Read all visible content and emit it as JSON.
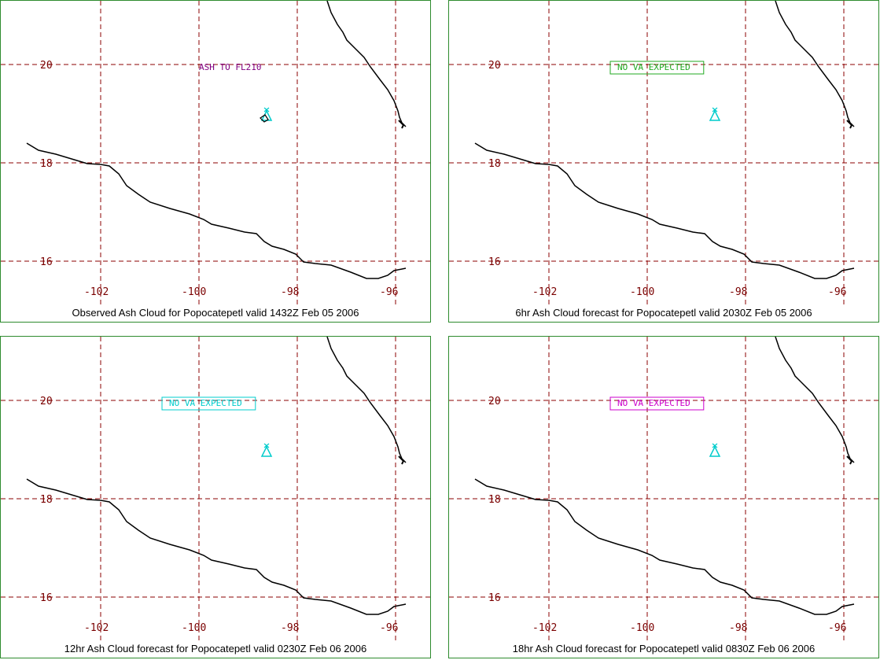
{
  "map": {
    "lon_ticks": [
      "-102",
      "-100",
      "-98",
      "-96"
    ],
    "lat_ticks": [
      "20",
      "18",
      "16"
    ],
    "grid_color": "#8b0000",
    "coast_color": "#000000",
    "volcano_color": "#00cccc",
    "volcano_icon": "volcano-triangle-icon"
  },
  "panels": [
    {
      "caption": "Observed Ash Cloud for Popocatepetl valid 1432Z Feb 05 2006",
      "note": "ASH TO FL210",
      "note_color": "#800080",
      "note_boxed": false,
      "ash_polygon": true
    },
    {
      "caption": "6hr Ash Cloud forecast for Popocatepetl valid 2030Z Feb 05 2006",
      "note": "NO VA EXPECTED",
      "note_color": "#22aa22",
      "note_boxed": true,
      "ash_polygon": false
    },
    {
      "caption": "12hr Ash Cloud forecast for Popocatepetl valid 0230Z Feb 06 2006",
      "note": "NO VA EXPECTED",
      "note_color": "#00cccc",
      "note_boxed": true,
      "ash_polygon": false
    },
    {
      "caption": "18hr Ash Cloud forecast for Popocatepetl valid 0830Z Feb 06 2006",
      "note": "NO VA EXPECTED",
      "note_color": "#cc00cc",
      "note_boxed": true,
      "ash_polygon": false
    }
  ]
}
